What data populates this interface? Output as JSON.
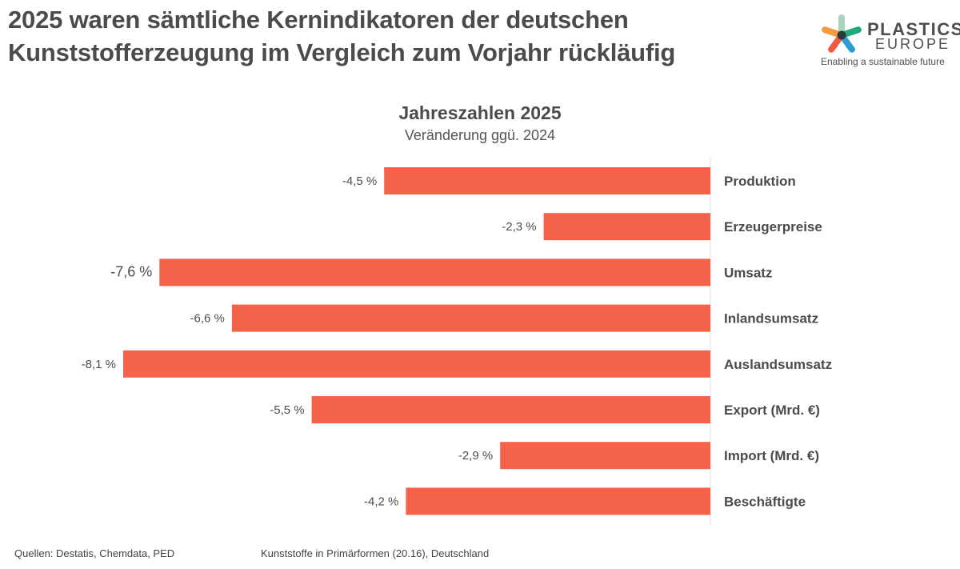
{
  "headline": {
    "line1": "2025 waren sämtliche Kernindikatoren der deutschen",
    "line2": "Kunststofferzeugung im Vergleich zum Vorjahr rückläufig"
  },
  "logo": {
    "brand_line1": "PLASTICS",
    "brand_line2": "EUROPE",
    "tagline": "Enabling a sustainable future",
    "icon": "star-logo-icon",
    "colors": [
      "#a9d5bf",
      "#1faa7b",
      "#2e9bd6",
      "#ee5a43",
      "#f59a3f"
    ]
  },
  "footer": {
    "sources": "Quellen: Destatis, Chemdata, PED",
    "scope": "Kunststoffe in Primärformen (20.16), Deutschland"
  },
  "chart_data": {
    "type": "bar",
    "orientation": "horizontal",
    "title": "Jahreszahlen 2025",
    "subtitle": "Veränderung ggü. 2024",
    "xlabel": "",
    "ylabel": "",
    "unit": "%",
    "categories": [
      "Produktion",
      "Erzeugerpreise",
      "Umsatz",
      "Inlandsumsatz",
      "Auslandsumsatz",
      "Export (Mrd. €)",
      "Import (Mrd. €)",
      "Beschäftigte"
    ],
    "values": [
      -4.5,
      -2.3,
      -7.6,
      -6.6,
      -8.1,
      -5.5,
      -2.9,
      -4.2
    ],
    "data_labels": [
      "-4,5 %",
      "-2,3 %",
      "-7,6 %",
      "-6,6 %",
      "-8,1 %",
      "-5,5 %",
      "-2,9 %",
      "-4,2 %"
    ],
    "xlim": [
      -8.1,
      0
    ],
    "bar_color": "#f4624a",
    "grid": false,
    "legend": "none",
    "category_labels_position": "right"
  }
}
